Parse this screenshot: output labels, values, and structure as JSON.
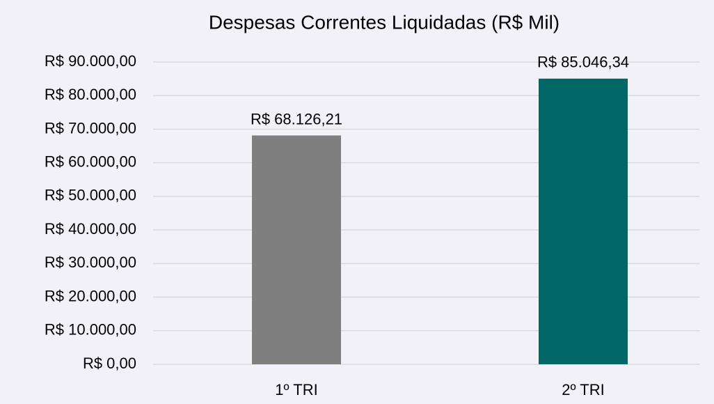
{
  "chart_data": {
    "type": "bar",
    "title": "Despesas Correntes Liquidadas (R$ Mil)",
    "categories": [
      "1º TRI",
      "2º TRI"
    ],
    "values": [
      68126.21,
      85046.34
    ],
    "value_labels": [
      "R$ 68.126,21",
      "R$ 85.046,34"
    ],
    "colors": [
      "#7f7f7f",
      "#006666"
    ],
    "ylim": [
      0,
      90000
    ],
    "yticks": [
      {
        "value": 0,
        "label": "R$ 0,00"
      },
      {
        "value": 10000,
        "label": "R$ 10.000,00"
      },
      {
        "value": 20000,
        "label": "R$ 20.000,00"
      },
      {
        "value": 30000,
        "label": "R$ 30.000,00"
      },
      {
        "value": 40000,
        "label": "R$ 40.000,00"
      },
      {
        "value": 50000,
        "label": "R$ 50.000,00"
      },
      {
        "value": 60000,
        "label": "R$ 60.000,00"
      },
      {
        "value": 70000,
        "label": "R$ 70.000,00"
      },
      {
        "value": 80000,
        "label": "R$ 80.000,00"
      },
      {
        "value": 90000,
        "label": "R$ 90.000,00"
      }
    ],
    "grid": true
  }
}
